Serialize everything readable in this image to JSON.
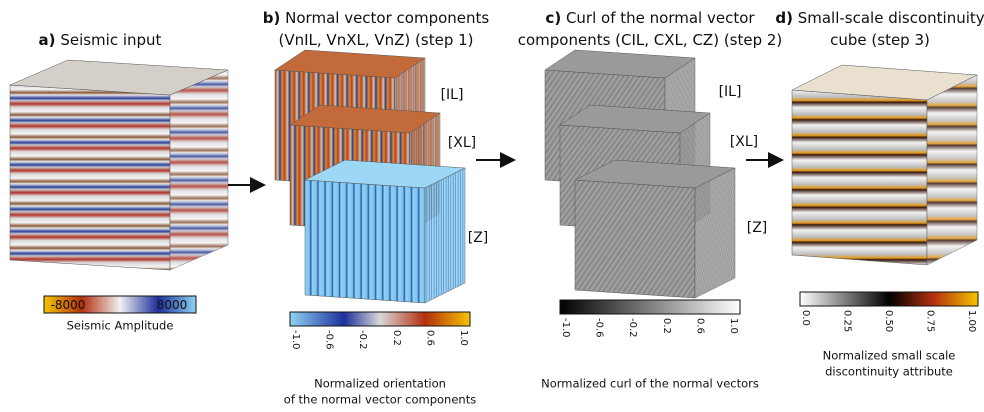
{
  "panels": [
    {
      "label": "a)",
      "title": [
        "Seismic input"
      ],
      "colorbar": {
        "ticks": [
          "-8000",
          "8000"
        ],
        "caption": [
          "Seismic Amplitude"
        ]
      }
    },
    {
      "label": "b)",
      "title": [
        "Normal vector components",
        "(VnIL, VnXL, VnZ) (step 1)"
      ],
      "cube_labels": [
        "[IL]",
        "[XL]",
        "[Z]"
      ],
      "colorbar": {
        "ticks": [
          "-1.0",
          "-0.6",
          "-0.2",
          "0.2",
          "0.6",
          "1.0"
        ],
        "caption": [
          "Normalized orientation",
          "of the normal vector components"
        ]
      }
    },
    {
      "label": "c)",
      "title": [
        "Curl of the normal vector",
        "components (CIL, CXL, CZ) (step 2)"
      ],
      "cube_labels": [
        "[IL]",
        "[XL]",
        "[Z]"
      ],
      "colorbar": {
        "ticks": [
          "-1.0",
          "-0.6",
          "-0.2",
          "0.2",
          "0.6",
          "1.0"
        ],
        "caption": [
          "Normalized curl of the normal vectors"
        ]
      }
    },
    {
      "label": "d)",
      "title": [
        "Small-scale discontinuity",
        "cube (step 3)"
      ],
      "colorbar": {
        "ticks": [
          "0.0",
          "0.25",
          "0.50",
          "0.75",
          "1.00"
        ],
        "caption": [
          "Normalized small scale",
          "discontinuity  attribute"
        ]
      }
    }
  ]
}
